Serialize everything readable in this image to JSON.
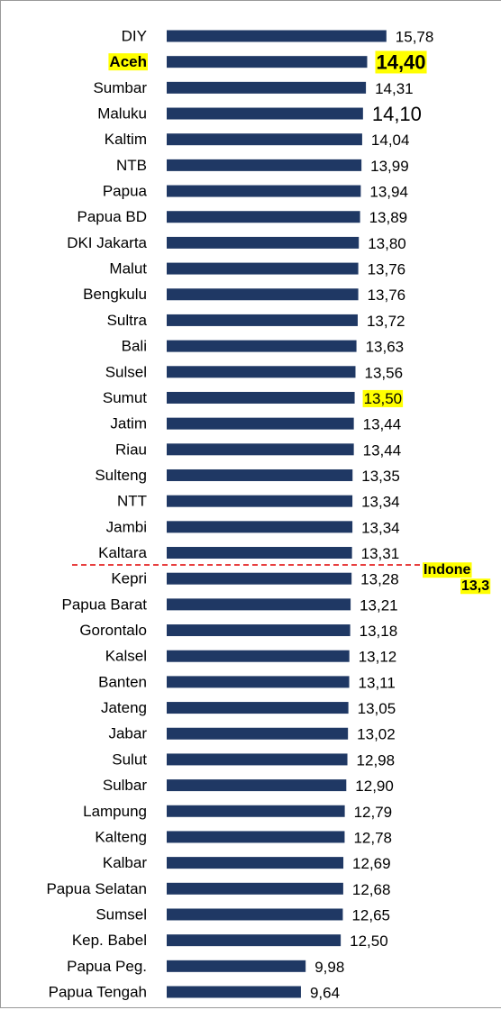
{
  "chart_data": {
    "type": "barh",
    "categories": [
      "DIY",
      "Aceh",
      "Sumbar",
      "Maluku",
      "Kaltim",
      "NTB",
      "Papua",
      "Papua BD",
      "DKI Jakarta",
      "Malut",
      "Bengkulu",
      "Sultra",
      "Bali",
      "Sulsel",
      "Sumut",
      "Jatim",
      "Riau",
      "Sulteng",
      "NTT",
      "Jambi",
      "Kaltara",
      "Kepri",
      "Papua Barat",
      "Gorontalo",
      "Kalsel",
      "Banten",
      "Jateng",
      "Jabar",
      "Sulut",
      "Sulbar",
      "Lampung",
      "Kalteng",
      "Kalbar",
      "Papua Selatan",
      "Sumsel",
      "Kep. Babel",
      "Papua Peg.",
      "Papua Tengah"
    ],
    "values": [
      15.78,
      14.4,
      14.31,
      14.1,
      14.04,
      13.99,
      13.94,
      13.89,
      13.8,
      13.76,
      13.76,
      13.72,
      13.63,
      13.56,
      13.5,
      13.44,
      13.44,
      13.35,
      13.34,
      13.34,
      13.31,
      13.28,
      13.21,
      13.18,
      13.12,
      13.11,
      13.05,
      13.02,
      12.98,
      12.9,
      12.79,
      12.78,
      12.69,
      12.68,
      12.65,
      12.5,
      9.98,
      9.64
    ],
    "value_labels": [
      "15,78",
      "14,40",
      "14,31",
      "14,10",
      "14,04",
      "13,99",
      "13,94",
      "13,89",
      "13,80",
      "13,76",
      "13,76",
      "13,72",
      "13,63",
      "13,56",
      "13,50",
      "13,44",
      "13,44",
      "13,35",
      "13,34",
      "13,34",
      "13,31",
      "13,28",
      "13,21",
      "13,18",
      "13,12",
      "13,11",
      "13,05",
      "13,02",
      "12,98",
      "12,90",
      "12,79",
      "12,78",
      "12,69",
      "12,68",
      "12,65",
      "12,50",
      "9,98",
      "9,64"
    ],
    "color": "#1f3864",
    "xlim": [
      0,
      20
    ],
    "highlight_color": "#ffff00",
    "highlighted_categories": [
      1
    ],
    "highlighted_values": [
      1,
      14
    ],
    "large_values": [
      1,
      3
    ],
    "annotations": [
      "Indone",
      "13,3"
    ]
  }
}
